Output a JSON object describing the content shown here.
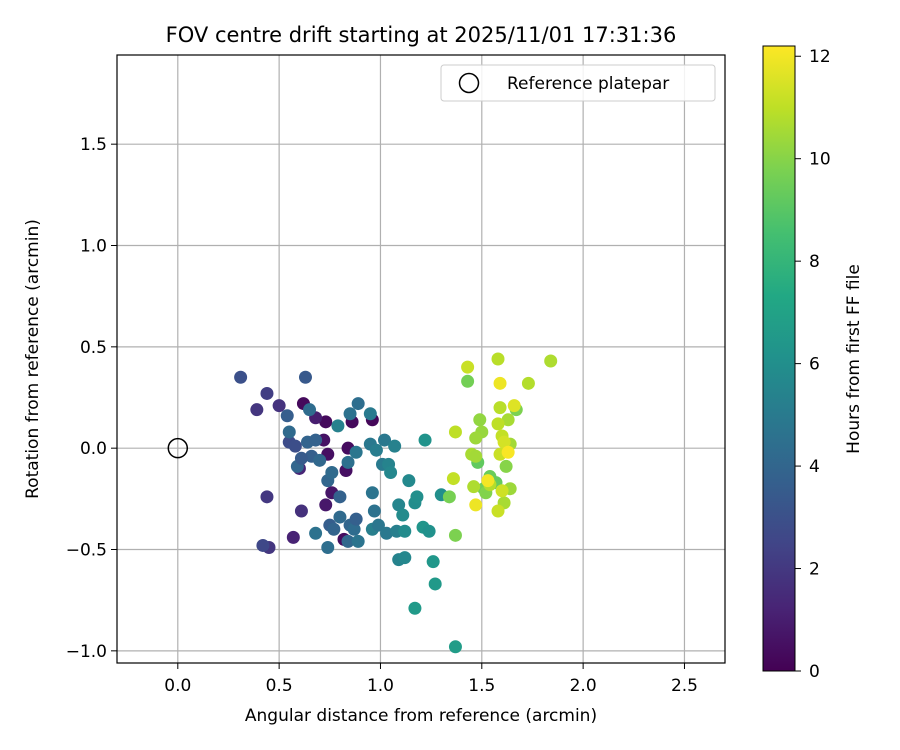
{
  "chart_data": {
    "type": "scatter",
    "title": "FOV centre drift starting at 2025/11/01 17:31:36",
    "xlabel": "Angular distance from reference (arcmin)",
    "ylabel": "Rotation from reference (arcmin)",
    "xlim": [
      -0.3,
      2.7
    ],
    "ylim": [
      -1.06,
      1.94
    ],
    "x_ticks": [
      0.0,
      0.5,
      1.0,
      1.5,
      2.0,
      2.5
    ],
    "x_tick_labels": [
      "0.0",
      "0.5",
      "1.0",
      "1.5",
      "2.0",
      "2.5"
    ],
    "y_ticks": [
      -1.0,
      -0.5,
      0.0,
      0.5,
      1.0,
      1.5
    ],
    "y_tick_labels": [
      "−1.0",
      "−0.5",
      "0.0",
      "0.5",
      "1.0",
      "1.5"
    ],
    "grid": true,
    "legend": {
      "placement": "top-right",
      "entries": [
        "Reference platepar"
      ]
    },
    "reference_point": {
      "x": 0.0,
      "y": 0.0,
      "label": "Reference platepar"
    },
    "colorbar": {
      "label": "Hours from first FF file",
      "colormap": "viridis",
      "range": [
        0,
        12.2
      ],
      "ticks": [
        0,
        2,
        4,
        6,
        8,
        10,
        12
      ],
      "tick_labels": [
        "0",
        "2",
        "4",
        "6",
        "8",
        "10",
        "12"
      ]
    },
    "series": [
      {
        "name": "FOV centre drift",
        "c_key": "hours",
        "points": [
          {
            "x": 0.62,
            "y": 0.22,
            "hours": 0.3
          },
          {
            "x": 0.73,
            "y": 0.13,
            "hours": 0.3
          },
          {
            "x": 0.86,
            "y": 0.13,
            "hours": 0.3
          },
          {
            "x": 0.96,
            "y": 0.14,
            "hours": 0.2
          },
          {
            "x": 0.72,
            "y": 0.04,
            "hours": 0.6
          },
          {
            "x": 0.84,
            "y": 0.0,
            "hours": 0.4
          },
          {
            "x": 0.74,
            "y": -0.03,
            "hours": 0.5
          },
          {
            "x": 0.83,
            "y": -0.11,
            "hours": 0.5
          },
          {
            "x": 0.76,
            "y": -0.22,
            "hours": 0.7
          },
          {
            "x": 0.73,
            "y": -0.28,
            "hours": 0.8
          },
          {
            "x": 0.82,
            "y": -0.45,
            "hours": 0.4
          },
          {
            "x": 0.6,
            "y": -0.1,
            "hours": 1.3
          },
          {
            "x": 0.57,
            "y": -0.44,
            "hours": 1.2
          },
          {
            "x": 0.68,
            "y": 0.15,
            "hours": 1.0
          },
          {
            "x": 0.61,
            "y": -0.31,
            "hours": 1.7
          },
          {
            "x": 0.44,
            "y": -0.24,
            "hours": 2.0
          },
          {
            "x": 0.45,
            "y": -0.49,
            "hours": 1.9
          },
          {
            "x": 0.39,
            "y": 0.19,
            "hours": 1.9
          },
          {
            "x": 0.5,
            "y": 0.21,
            "hours": 1.8
          },
          {
            "x": 0.44,
            "y": 0.27,
            "hours": 2.2
          },
          {
            "x": 0.42,
            "y": -0.48,
            "hours": 2.6
          },
          {
            "x": 0.31,
            "y": 0.35,
            "hours": 3.0
          },
          {
            "x": 0.55,
            "y": 0.03,
            "hours": 2.8
          },
          {
            "x": 0.58,
            "y": 0.01,
            "hours": 2.9
          },
          {
            "x": 0.63,
            "y": 0.35,
            "hours": 3.4
          },
          {
            "x": 0.54,
            "y": 0.16,
            "hours": 3.6
          },
          {
            "x": 0.59,
            "y": -0.09,
            "hours": 4.0
          },
          {
            "x": 0.64,
            "y": 0.03,
            "hours": 3.9
          },
          {
            "x": 0.66,
            "y": -0.04,
            "hours": 3.7
          },
          {
            "x": 0.68,
            "y": 0.04,
            "hours": 3.8
          },
          {
            "x": 0.61,
            "y": -0.05,
            "hours": 3.5
          },
          {
            "x": 0.55,
            "y": 0.08,
            "hours": 4.2
          },
          {
            "x": 0.65,
            "y": 0.19,
            "hours": 4.3
          },
          {
            "x": 0.7,
            "y": -0.06,
            "hours": 4.1
          },
          {
            "x": 0.74,
            "y": -0.16,
            "hours": 4.0
          },
          {
            "x": 0.75,
            "y": -0.38,
            "hours": 3.6
          },
          {
            "x": 0.77,
            "y": -0.4,
            "hours": 3.9
          },
          {
            "x": 0.8,
            "y": -0.34,
            "hours": 4.2
          },
          {
            "x": 0.8,
            "y": -0.24,
            "hours": 3.8
          },
          {
            "x": 0.74,
            "y": -0.49,
            "hours": 4.4
          },
          {
            "x": 0.68,
            "y": -0.42,
            "hours": 4.6
          },
          {
            "x": 0.76,
            "y": -0.12,
            "hours": 4.2
          },
          {
            "x": 0.84,
            "y": -0.07,
            "hours": 4.5
          },
          {
            "x": 0.85,
            "y": -0.38,
            "hours": 4.0
          },
          {
            "x": 0.84,
            "y": -0.46,
            "hours": 4.1
          },
          {
            "x": 0.87,
            "y": -0.4,
            "hours": 4.3
          },
          {
            "x": 0.88,
            "y": -0.35,
            "hours": 3.7
          },
          {
            "x": 0.89,
            "y": -0.46,
            "hours": 4.7
          },
          {
            "x": 0.85,
            "y": 0.17,
            "hours": 4.6
          },
          {
            "x": 0.89,
            "y": 0.22,
            "hours": 4.4
          },
          {
            "x": 0.95,
            "y": 0.17,
            "hours": 5.0
          },
          {
            "x": 0.79,
            "y": 0.11,
            "hours": 5.3
          },
          {
            "x": 0.88,
            "y": -0.02,
            "hours": 4.8
          },
          {
            "x": 0.95,
            "y": 0.02,
            "hours": 4.9
          },
          {
            "x": 0.98,
            "y": -0.01,
            "hours": 5.1
          },
          {
            "x": 0.96,
            "y": -0.22,
            "hours": 4.7
          },
          {
            "x": 0.96,
            "y": -0.4,
            "hours": 5.2
          },
          {
            "x": 0.97,
            "y": -0.31,
            "hours": 4.6
          },
          {
            "x": 0.99,
            "y": -0.38,
            "hours": 4.8
          },
          {
            "x": 1.02,
            "y": 0.04,
            "hours": 4.9
          },
          {
            "x": 1.07,
            "y": 0.01,
            "hours": 5.3
          },
          {
            "x": 1.01,
            "y": -0.08,
            "hours": 5.0
          },
          {
            "x": 1.04,
            "y": -0.08,
            "hours": 5.4
          },
          {
            "x": 1.05,
            "y": -0.12,
            "hours": 5.6
          },
          {
            "x": 1.03,
            "y": -0.42,
            "hours": 4.9
          },
          {
            "x": 1.08,
            "y": -0.41,
            "hours": 5.2
          },
          {
            "x": 1.09,
            "y": -0.28,
            "hours": 5.5
          },
          {
            "x": 1.09,
            "y": -0.55,
            "hours": 5.4
          },
          {
            "x": 1.12,
            "y": -0.54,
            "hours": 5.6
          },
          {
            "x": 1.12,
            "y": -0.41,
            "hours": 5.8
          },
          {
            "x": 1.14,
            "y": -0.16,
            "hours": 5.7
          },
          {
            "x": 1.17,
            "y": -0.27,
            "hours": 5.9
          },
          {
            "x": 1.18,
            "y": -0.24,
            "hours": 6.0
          },
          {
            "x": 1.22,
            "y": 0.04,
            "hours": 6.2
          },
          {
            "x": 1.21,
            "y": -0.39,
            "hours": 6.3
          },
          {
            "x": 1.24,
            "y": -0.41,
            "hours": 6.1
          },
          {
            "x": 1.26,
            "y": -0.56,
            "hours": 6.4
          },
          {
            "x": 1.27,
            "y": -0.67,
            "hours": 6.5
          },
          {
            "x": 1.17,
            "y": -0.79,
            "hours": 6.6
          },
          {
            "x": 1.3,
            "y": -0.23,
            "hours": 6.0
          },
          {
            "x": 1.37,
            "y": -0.98,
            "hours": 6.7
          },
          {
            "x": 1.11,
            "y": -0.33,
            "hours": 5.8
          },
          {
            "x": 1.43,
            "y": 0.33,
            "hours": 9.6
          },
          {
            "x": 1.48,
            "y": -0.07,
            "hours": 9.2
          },
          {
            "x": 1.51,
            "y": -0.2,
            "hours": 9.5
          },
          {
            "x": 1.34,
            "y": -0.24,
            "hours": 9.7
          },
          {
            "x": 1.37,
            "y": -0.43,
            "hours": 9.8
          },
          {
            "x": 1.52,
            "y": -0.22,
            "hours": 9.9
          },
          {
            "x": 1.54,
            "y": -0.14,
            "hours": 9.4
          },
          {
            "x": 1.57,
            "y": -0.17,
            "hours": 9.3
          },
          {
            "x": 1.67,
            "y": 0.19,
            "hours": 9.8
          },
          {
            "x": 1.62,
            "y": -0.09,
            "hours": 10.0
          },
          {
            "x": 1.49,
            "y": 0.14,
            "hours": 10.2
          },
          {
            "x": 1.5,
            "y": 0.08,
            "hours": 10.3
          },
          {
            "x": 1.47,
            "y": 0.05,
            "hours": 10.4
          },
          {
            "x": 1.45,
            "y": -0.03,
            "hours": 10.6
          },
          {
            "x": 1.47,
            "y": -0.04,
            "hours": 10.5
          },
          {
            "x": 1.46,
            "y": -0.19,
            "hours": 10.7
          },
          {
            "x": 1.54,
            "y": -0.18,
            "hours": 10.8
          },
          {
            "x": 1.37,
            "y": 0.08,
            "hours": 11.0
          },
          {
            "x": 1.36,
            "y": -0.15,
            "hours": 11.1
          },
          {
            "x": 1.43,
            "y": 0.4,
            "hours": 11.2
          },
          {
            "x": 1.58,
            "y": 0.44,
            "hours": 10.9
          },
          {
            "x": 1.73,
            "y": 0.32,
            "hours": 10.8
          },
          {
            "x": 1.84,
            "y": 0.43,
            "hours": 10.7
          },
          {
            "x": 1.63,
            "y": 0.14,
            "hours": 10.6
          },
          {
            "x": 1.64,
            "y": 0.02,
            "hours": 10.5
          },
          {
            "x": 1.64,
            "y": -0.2,
            "hours": 10.4
          },
          {
            "x": 1.61,
            "y": -0.27,
            "hours": 10.6
          },
          {
            "x": 1.59,
            "y": 0.2,
            "hours": 10.9
          },
          {
            "x": 1.58,
            "y": 0.12,
            "hours": 11.0
          },
          {
            "x": 1.6,
            "y": 0.06,
            "hours": 11.1
          },
          {
            "x": 1.59,
            "y": -0.03,
            "hours": 11.2
          },
          {
            "x": 1.6,
            "y": -0.21,
            "hours": 11.3
          },
          {
            "x": 1.58,
            "y": -0.31,
            "hours": 11.2
          },
          {
            "x": 1.61,
            "y": 0.03,
            "hours": 11.4
          },
          {
            "x": 1.59,
            "y": 0.32,
            "hours": 11.9
          },
          {
            "x": 1.66,
            "y": 0.21,
            "hours": 11.6
          },
          {
            "x": 1.53,
            "y": -0.16,
            "hours": 12.0
          },
          {
            "x": 1.47,
            "y": -0.28,
            "hours": 11.9
          },
          {
            "x": 1.63,
            "y": -0.02,
            "hours": 12.1
          }
        ]
      }
    ]
  }
}
